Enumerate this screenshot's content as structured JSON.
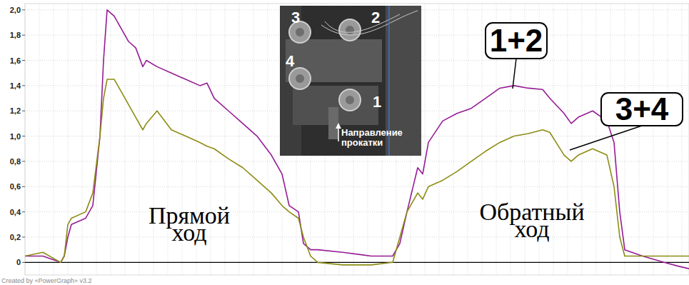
{
  "chart_data": {
    "type": "line",
    "x": [
      0,
      2.5,
      5,
      5.5,
      6,
      6.5,
      8.5,
      9.5,
      10.5,
      11,
      11.5,
      12.5,
      13.5,
      14.5,
      15.5,
      16.5,
      17,
      18.5,
      20.5,
      22.5,
      24.5,
      25.5,
      26.5,
      28.5,
      30.5,
      32.5,
      34.5,
      36,
      37,
      38.3,
      39,
      40,
      41,
      44.5,
      48.5,
      51.5,
      52.5,
      53.5,
      55,
      55.7,
      56.5,
      58.5,
      60.5,
      62.5,
      64.5,
      66.5,
      68.5,
      70.5,
      72.5,
      73.5,
      75.5,
      76.5,
      77.5,
      79.5,
      81.5,
      82.5,
      83.3,
      84,
      86.5,
      89.5,
      91.5,
      93
    ],
    "series": [
      {
        "name": "1+2",
        "color": "#951c95",
        "values": [
          0.05,
          0.05,
          0.0,
          0.05,
          0.2,
          0.3,
          0.35,
          0.45,
          1.0,
          1.6,
          2.0,
          1.95,
          1.85,
          1.75,
          1.7,
          1.55,
          1.6,
          1.55,
          1.5,
          1.45,
          1.4,
          1.42,
          1.3,
          1.2,
          1.1,
          1.0,
          0.85,
          0.7,
          0.45,
          0.4,
          0.15,
          0.1,
          0.1,
          0.08,
          0.05,
          0.05,
          0.15,
          0.4,
          0.75,
          0.7,
          0.95,
          1.12,
          1.18,
          1.22,
          1.3,
          1.38,
          1.4,
          1.38,
          1.37,
          1.3,
          1.18,
          1.1,
          1.15,
          1.2,
          1.12,
          0.95,
          0.4,
          0.1,
          0.05,
          0.0,
          -0.03,
          -0.05
        ]
      },
      {
        "name": "3+4",
        "color": "#8c8c14",
        "values": [
          0.05,
          0.08,
          0.0,
          0.05,
          0.3,
          0.35,
          0.4,
          0.55,
          1.0,
          1.3,
          1.45,
          1.45,
          1.35,
          1.25,
          1.15,
          1.05,
          1.1,
          1.2,
          1.05,
          1.0,
          0.95,
          0.92,
          0.9,
          0.82,
          0.75,
          0.65,
          0.55,
          0.45,
          0.4,
          0.35,
          0.2,
          0.05,
          0.0,
          -0.02,
          -0.02,
          0.0,
          0.2,
          0.4,
          0.55,
          0.5,
          0.6,
          0.65,
          0.72,
          0.8,
          0.88,
          0.95,
          1.0,
          1.02,
          1.05,
          1.03,
          0.85,
          0.8,
          0.85,
          0.9,
          0.85,
          0.6,
          0.2,
          0.05,
          0.05,
          0.05,
          0.05,
          0.05
        ]
      }
    ],
    "xlim": [
      0,
      93
    ],
    "xticks": [
      0,
      2,
      4,
      6,
      8,
      10,
      12,
      14,
      16,
      18,
      20,
      22,
      24,
      26,
      28,
      30,
      32,
      34,
      36,
      38,
      40,
      42,
      44,
      46,
      48,
      50,
      52,
      54,
      56,
      58,
      60,
      62,
      64,
      66,
      68,
      70,
      72,
      74,
      76,
      78,
      80,
      82,
      84,
      86,
      88,
      90,
      92
    ],
    "ylim": [
      -0.1,
      2.05
    ],
    "yticks": [
      0,
      {
        "value": 0.2,
        "label": "0,2"
      },
      {
        "value": 0.4,
        "label": "0,4"
      },
      {
        "value": 0.6,
        "label": "0,6"
      },
      {
        "value": 0.8,
        "label": "0,8"
      },
      {
        "value": 1.0,
        "label": "1,0"
      },
      {
        "value": 1.2,
        "label": "1,2"
      },
      {
        "value": 1.4,
        "label": "1,4"
      },
      {
        "value": 1.6,
        "label": "1,6"
      },
      {
        "value": 1.8,
        "label": "1,8"
      },
      {
        "value": 2.0,
        "label": "2,0"
      }
    ],
    "grid": true,
    "tick_labels": "y",
    "annotations": [
      {
        "text": "Прямой ход"
      },
      {
        "text": "Обратный ход"
      }
    ],
    "inset": {
      "labels": [
        "3",
        "2",
        "4",
        "1"
      ],
      "caption": "Направление прокатки"
    },
    "source": "Created by «PowerGraph» v3.2"
  }
}
